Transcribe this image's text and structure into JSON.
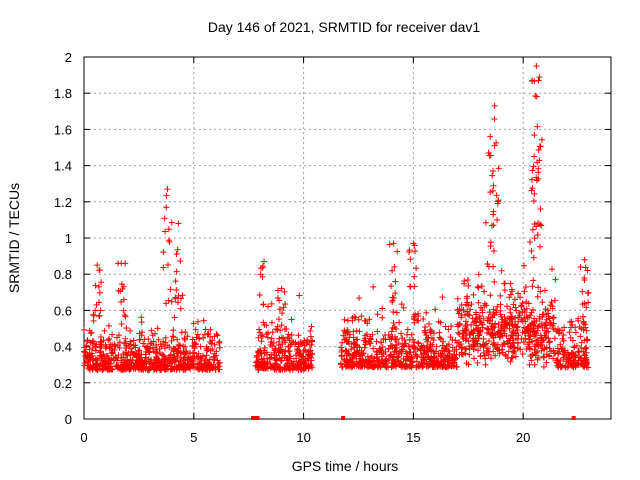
{
  "chart_data": {
    "type": "scatter",
    "title": "Day 146 of 2021, SRMTID for receiver dav1",
    "xlabel": "GPS time / hours",
    "ylabel": "SRMTID / TECUs",
    "xlim": [
      0,
      24
    ],
    "ylim": [
      0,
      2
    ],
    "grid": true,
    "marker": "+",
    "color": "#ff0000",
    "x_ticks": [
      0,
      5,
      10,
      15,
      20
    ],
    "x_tick_labels": [
      "0",
      "5",
      "10",
      "15",
      "20"
    ],
    "y_ticks": [
      0,
      0.2,
      0.4,
      0.6,
      0.8,
      1,
      1.2,
      1.4,
      1.6,
      1.8,
      2
    ],
    "y_tick_labels": [
      "0",
      "0.2",
      "0.4",
      "0.6",
      "0.8",
      "1",
      "1.2",
      "1.4",
      "1.6",
      "1.8",
      "2"
    ],
    "series": [
      {
        "name": "SRMTID",
        "segments": [
          {
            "x_start": 0.0,
            "x_end": 6.2,
            "typical_range": [
              0.15,
              0.55
            ],
            "peaks": [
              {
                "x": 0.6,
                "y": 0.85
              },
              {
                "x": 1.7,
                "y": 0.86
              },
              {
                "x": 3.8,
                "y": 1.27
              },
              {
                "x": 4.3,
                "y": 1.08
              }
            ]
          },
          {
            "x_start": 7.8,
            "x_end": 10.4,
            "typical_range": [
              0.15,
              0.55
            ],
            "peaks": [
              {
                "x": 8.2,
                "y": 0.87
              },
              {
                "x": 9.0,
                "y": 0.72
              }
            ]
          },
          {
            "x_start": 11.7,
            "x_end": 23.0,
            "typical_range": [
              0.15,
              0.6
            ],
            "peaks": [
              {
                "x": 14.1,
                "y": 0.97
              },
              {
                "x": 15.0,
                "y": 0.97
              },
              {
                "x": 18.7,
                "y": 1.73
              },
              {
                "x": 18.5,
                "y": 1.56
              },
              {
                "x": 20.6,
                "y": 1.95
              },
              {
                "x": 20.7,
                "y": 1.87
              },
              {
                "x": 20.5,
                "y": 1.45
              },
              {
                "x": 22.8,
                "y": 0.88
              }
            ]
          }
        ],
        "zero_markers": [
          7.7,
          7.8,
          7.9,
          11.8,
          22.3
        ]
      }
    ]
  }
}
